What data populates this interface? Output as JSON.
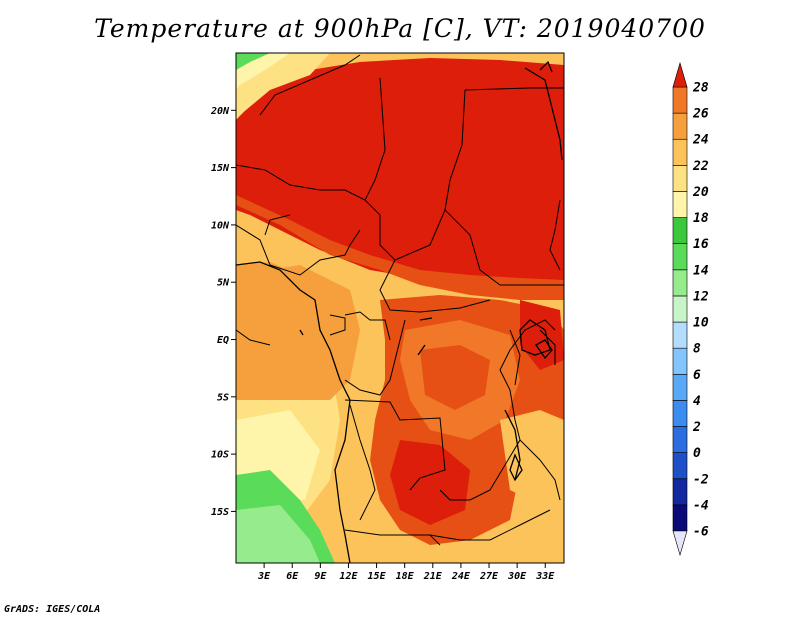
{
  "title": "Temperature at 900hPa [C], VT: 2019040700",
  "footer": "GrADS: IGES/COLA",
  "map": {
    "lon_range": [
      0,
      35
    ],
    "lat_range": [
      -19.5,
      25
    ],
    "lat_ticks": [
      {
        "value": 20,
        "label": "20N"
      },
      {
        "value": 15,
        "label": "15N"
      },
      {
        "value": 10,
        "label": "10N"
      },
      {
        "value": 5,
        "label": "5N"
      },
      {
        "value": 0,
        "label": "EQ"
      },
      {
        "value": -5,
        "label": "5S"
      },
      {
        "value": -10,
        "label": "10S"
      },
      {
        "value": -15,
        "label": "15S"
      }
    ],
    "lon_ticks": [
      {
        "value": 3,
        "label": "3E"
      },
      {
        "value": 6,
        "label": "6E"
      },
      {
        "value": 9,
        "label": "9E"
      },
      {
        "value": 12,
        "label": "12E"
      },
      {
        "value": 15,
        "label": "15E"
      },
      {
        "value": 18,
        "label": "18E"
      },
      {
        "value": 21,
        "label": "21E"
      },
      {
        "value": 24,
        "label": "24E"
      },
      {
        "value": 27,
        "label": "27E"
      },
      {
        "value": 30,
        "label": "30E"
      },
      {
        "value": 33,
        "label": "33E"
      }
    ]
  },
  "colorbar": {
    "levels": [
      "-6",
      "-4",
      "-2",
      "0",
      "2",
      "4",
      "6",
      "8",
      "10",
      "12",
      "14",
      "16",
      "18",
      "20",
      "22",
      "24",
      "26",
      "28"
    ],
    "colors": [
      "#0a0a78",
      "#1428a0",
      "#1e50c8",
      "#2c6ee0",
      "#3c8cf0",
      "#5aa8f8",
      "#82c4fc",
      "#b4dcfc",
      "#c8f5c8",
      "#96eb8c",
      "#5adc5a",
      "#3cc83c",
      "#fff5aa",
      "#fde182",
      "#fbc35a",
      "#f5a03c",
      "#f07828",
      "#e65014",
      "#dc1e0a",
      "#e6e6fa"
    ],
    "low_color": "#e6e6fa",
    "high_color": "#c81e14"
  }
}
